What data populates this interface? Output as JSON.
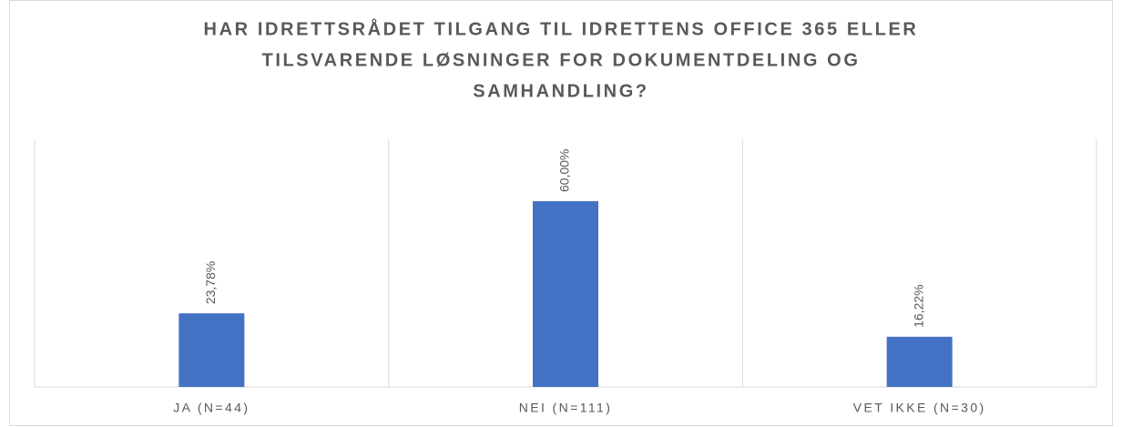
{
  "chart_data": {
    "type": "bar",
    "title": [
      "HAR IDRETTSRÅDET TILGANG TIL IDRETTENS OFFICE 365 ELLER",
      "TILSVARENDE LØSNINGER FOR DOKUMENTDELING OG",
      "SAMHANDLING?"
    ],
    "categories": [
      "JA (N=44)",
      "NEI (N=111)",
      "VET IKKE (N=30)"
    ],
    "values": [
      23.78,
      60,
      16.22
    ],
    "value_labels": [
      "23,78%",
      "60,00%",
      "16,22%"
    ],
    "color": "#4472c4",
    "ylim": [
      0,
      80
    ]
  }
}
